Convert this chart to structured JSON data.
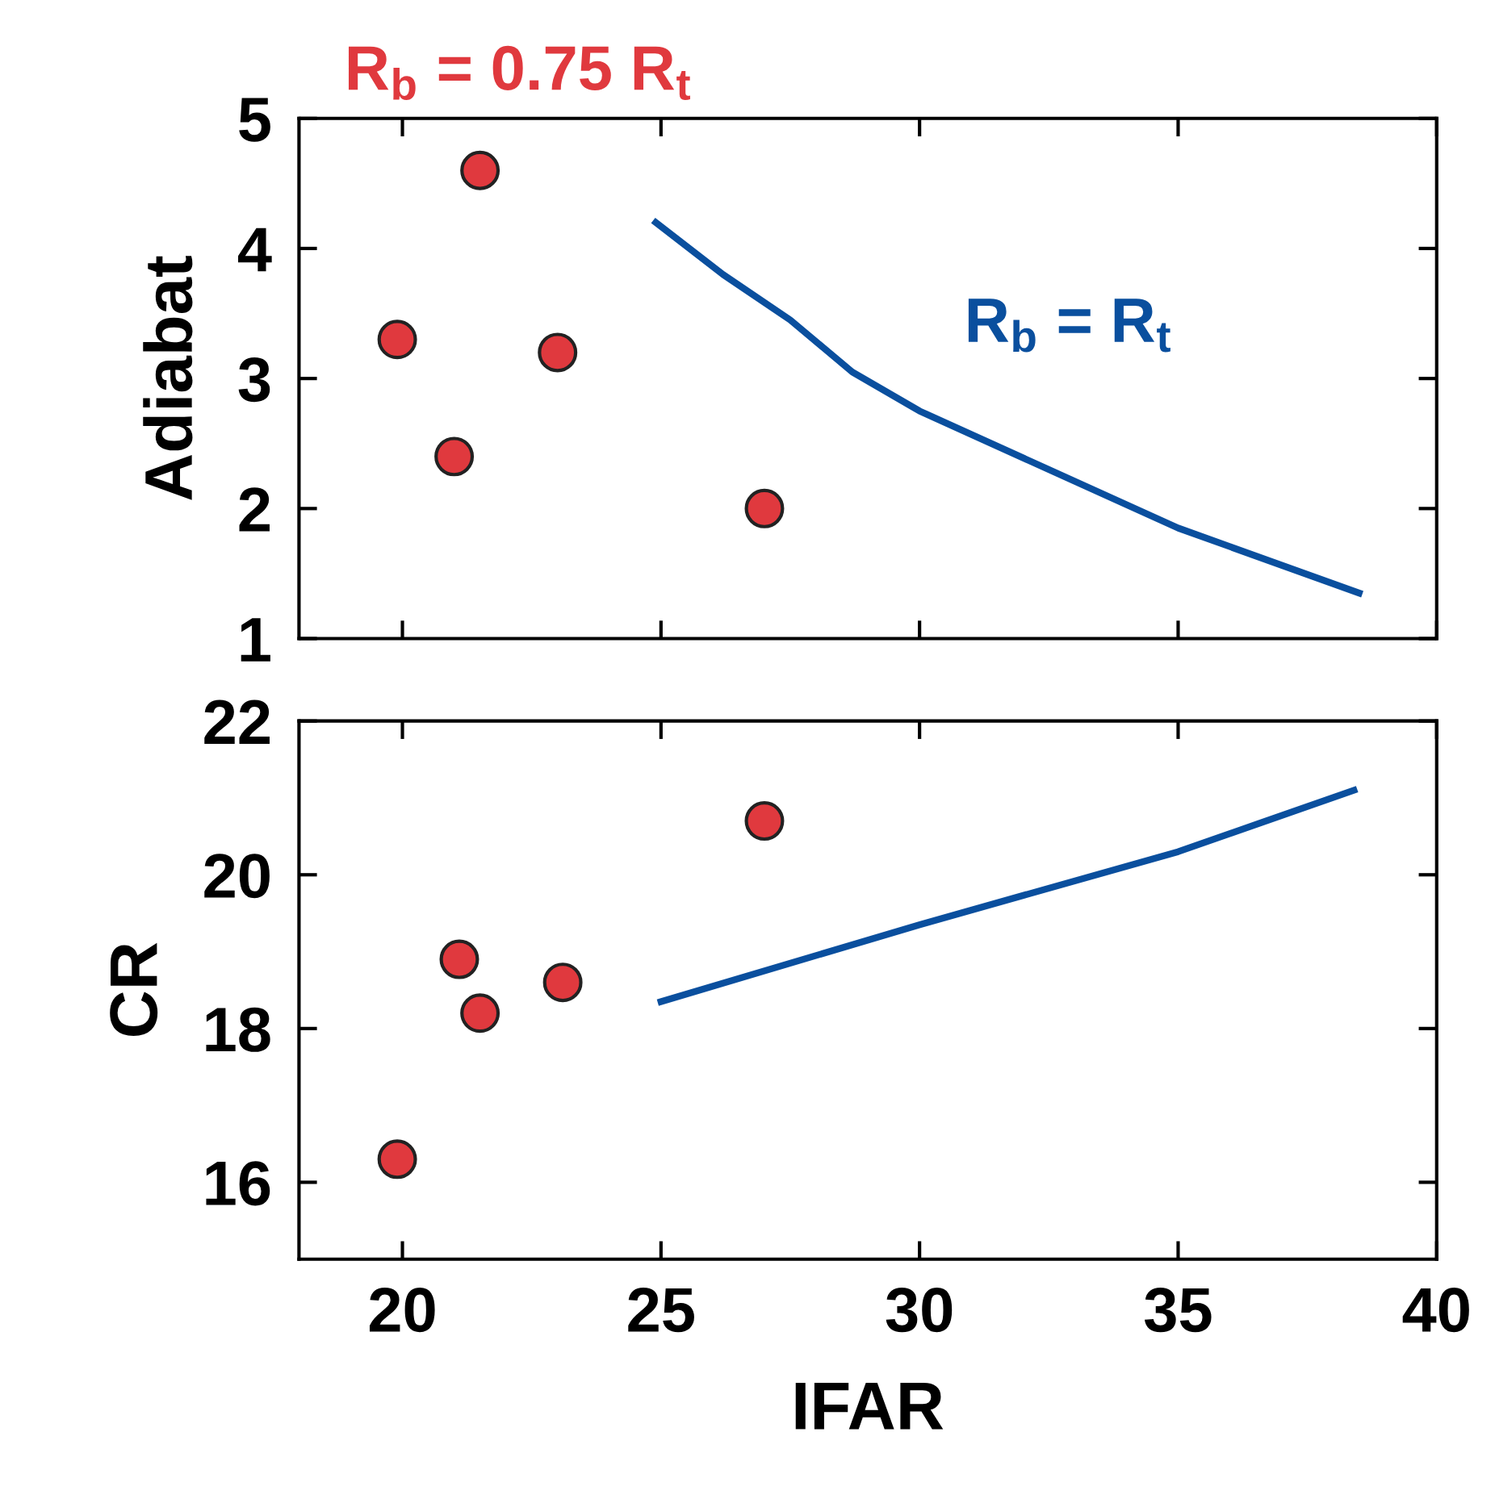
{
  "chart_data": [
    {
      "type": "scatter",
      "ylabel": "Adiabat",
      "xlim": [
        18,
        40
      ],
      "xticks": [
        20,
        25,
        30,
        35,
        40
      ],
      "ylim": [
        1,
        5
      ],
      "yticks": [
        1,
        2,
        3,
        4,
        5
      ],
      "tick_labels": "y",
      "grid": false,
      "series": [
        {
          "name": "R$_{b}$ = 0.75 R$_{t}$",
          "color": "#e0393e",
          "marker": "circle",
          "x": [
            21.5,
            19.9,
            23.0,
            21.0,
            27.0
          ],
          "values": [
            4.6,
            3.3,
            3.2,
            2.4,
            2.0
          ]
        },
        {
          "type": "line",
          "name": "R$_{b}$ = R$_{t}$",
          "color": "#0a4f9e",
          "x": [
            24.9,
            26.2,
            27.5,
            28.7,
            30,
            32.5,
            35,
            38.5
          ],
          "values": [
            4.2,
            3.8,
            3.45,
            3.05,
            2.75,
            2.3,
            1.85,
            1.35
          ]
        }
      ]
    },
    {
      "type": "scatter",
      "ylabel": "CR",
      "xlabel": "IFAR",
      "xlim": [
        18,
        40
      ],
      "xticks": [
        20,
        25,
        30,
        35,
        40
      ],
      "ylim": [
        15,
        22
      ],
      "yticks": [
        16,
        18,
        20,
        22
      ],
      "grid": false,
      "series": [
        {
          "color": "#e0393e",
          "marker": "circle",
          "x": [
            27.0,
            21.1,
            23.1,
            21.5,
            19.9
          ],
          "values": [
            20.7,
            18.9,
            18.6,
            18.2,
            16.3
          ]
        },
        {
          "type": "line",
          "color": "#0a4f9e",
          "x": [
            25.0,
            30,
            35,
            38.4
          ],
          "values": [
            18.35,
            19.35,
            20.3,
            21.1
          ]
        }
      ]
    }
  ]
}
